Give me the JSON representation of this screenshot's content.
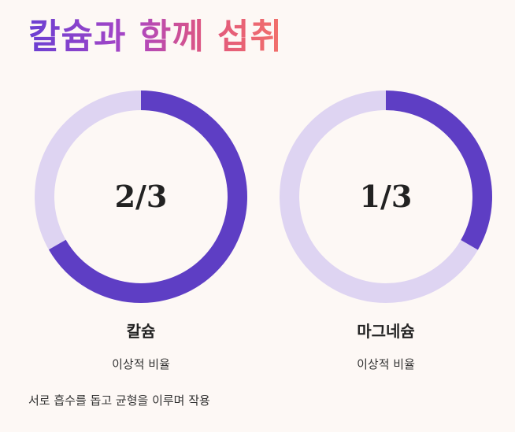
{
  "title": "칼슘과 함께 섭취",
  "colors": {
    "ring_fill": "#5e3ec4",
    "ring_track": "#ded4f2",
    "title_gradient": [
      "#6a3fd2",
      "#a946c5",
      "#e0577f",
      "#f2706a"
    ]
  },
  "minerals": [
    {
      "name": "칼슘",
      "ratio_label": "2/3",
      "ratio": 0.6667,
      "subtitle": "이상적 비율"
    },
    {
      "name": "마그네슘",
      "ratio_label": "1/3",
      "ratio": 0.3333,
      "subtitle": "이상적 비율"
    }
  ],
  "footer": "서로 흡수를 돕고 균형을 이루며 작용"
}
